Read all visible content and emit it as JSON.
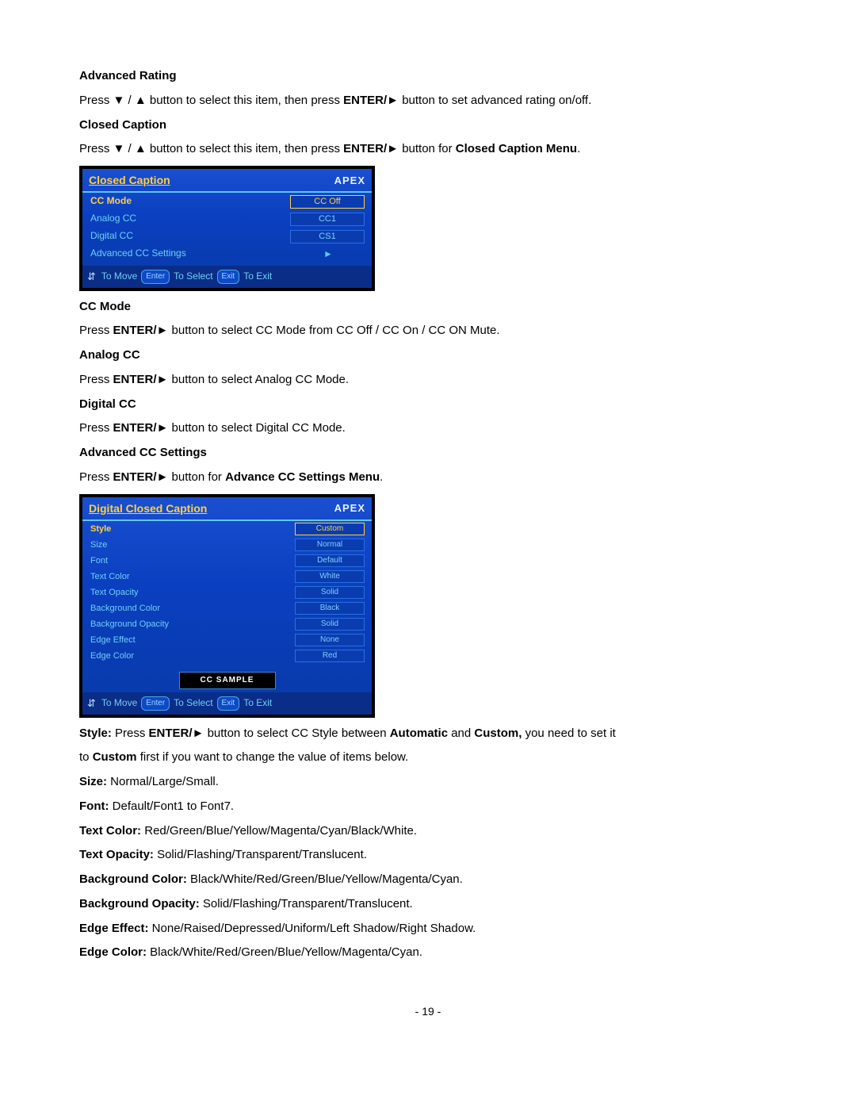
{
  "sections": {
    "advanced_rating": {
      "heading": "Advanced Rating",
      "text_pre": "Press ▼ / ▲ button to select this item, then press ",
      "text_bold1": "ENTER/►",
      "text_post": " button to set advanced rating on/off."
    },
    "closed_caption": {
      "heading": "Closed Caption",
      "text_pre": "Press ▼ / ▲ button to select this item, then press ",
      "text_bold1": "ENTER/►",
      "text_mid": " button for ",
      "text_bold2": "Closed Caption Menu",
      "text_end": "."
    },
    "cc_mode": {
      "heading": "CC Mode",
      "text_pre": "Press ",
      "text_bold": "ENTER/►",
      "text_post": " button to select CC Mode from CC Off / CC On / CC ON Mute."
    },
    "analog_cc": {
      "heading": "Analog CC",
      "text_pre": "Press ",
      "text_bold": "ENTER/►",
      "text_post": " button to select Analog CC Mode."
    },
    "digital_cc": {
      "heading": "Digital CC",
      "text_pre": "Press ",
      "text_bold": "ENTER/►",
      "text_post": " button to select Digital CC Mode."
    },
    "adv_cc_settings": {
      "heading": "Advanced CC Settings",
      "text_pre": "Press ",
      "text_bold1": "ENTER/►",
      "text_mid": " button for ",
      "text_bold2": "Advance CC Settings Menu",
      "text_end": "."
    }
  },
  "osd1": {
    "title": "Closed Caption",
    "brand": "APEX",
    "rows": [
      {
        "label": "CC Mode",
        "value": "CC Off",
        "selected": true
      },
      {
        "label": "Analog CC",
        "value": "CC1"
      },
      {
        "label": "Digital CC",
        "value": "CS1"
      },
      {
        "label": "Advanced CC Settings",
        "value": "►",
        "arrow": true
      }
    ],
    "footer": {
      "move": "To Move",
      "enter_key": "Enter",
      "select": "To Select",
      "exit_key": "Exit",
      "exit": "To Exit"
    }
  },
  "osd2": {
    "title": "Digital Closed Caption",
    "brand": "APEX",
    "rows": [
      {
        "label": "Style",
        "value": "Custom",
        "selected": true
      },
      {
        "label": "Size",
        "value": "Normal"
      },
      {
        "label": "Font",
        "value": "Default"
      },
      {
        "label": "Text Color",
        "value": "White"
      },
      {
        "label": "Text Opacity",
        "value": "Solid"
      },
      {
        "label": "Background Color",
        "value": "Black"
      },
      {
        "label": "Background Opacity",
        "value": "Solid"
      },
      {
        "label": "Edge Effect",
        "value": "None"
      },
      {
        "label": "Edge Color",
        "value": "Red"
      }
    ],
    "sample": "CC SAMPLE",
    "footer": {
      "move": "To Move",
      "enter_key": "Enter",
      "select": "To Select",
      "exit_key": "Exit",
      "exit": "To Exit"
    }
  },
  "defs": [
    {
      "label": "Style:",
      "pre": " Press ",
      "bold1": "ENTER/►",
      "mid": " button to select CC Style between ",
      "bold2": "Automatic",
      "mid2": " and ",
      "bold3": "Custom,",
      "post": " you need to set it"
    },
    {
      "cont_pre": "to ",
      "cont_bold": "Custom",
      "cont_post": " first if you want to change the value of items below."
    },
    {
      "label": "Size:",
      "post": " Normal/Large/Small."
    },
    {
      "label": "Font:",
      "post": " Default/Font1 to Font7."
    },
    {
      "label": "Text Color:",
      "post": " Red/Green/Blue/Yellow/Magenta/Cyan/Black/White."
    },
    {
      "label": "Text Opacity:",
      "post": " Solid/Flashing/Transparent/Translucent."
    },
    {
      "label": "Background Color:",
      "post": " Black/White/Red/Green/Blue/Yellow/Magenta/Cyan."
    },
    {
      "label": "Background Opacity:",
      "post": " Solid/Flashing/Transparent/Translucent."
    },
    {
      "label": "Edge Effect:",
      "post": " None/Raised/Depressed/Uniform/Left Shadow/Right Shadow."
    },
    {
      "label": "Edge Color:",
      "post": " Black/White/Red/Green/Blue/Yellow/Magenta/Cyan."
    }
  ],
  "page_number": "- 19 -",
  "colors": {
    "osd_bg_top": "#1a4fd0",
    "osd_bg_bottom": "#083aa8",
    "osd_title": "#ffd040",
    "osd_text": "#6fcff5",
    "osd_border": "#5fc6f0",
    "osd_sel": "#ffd040"
  }
}
